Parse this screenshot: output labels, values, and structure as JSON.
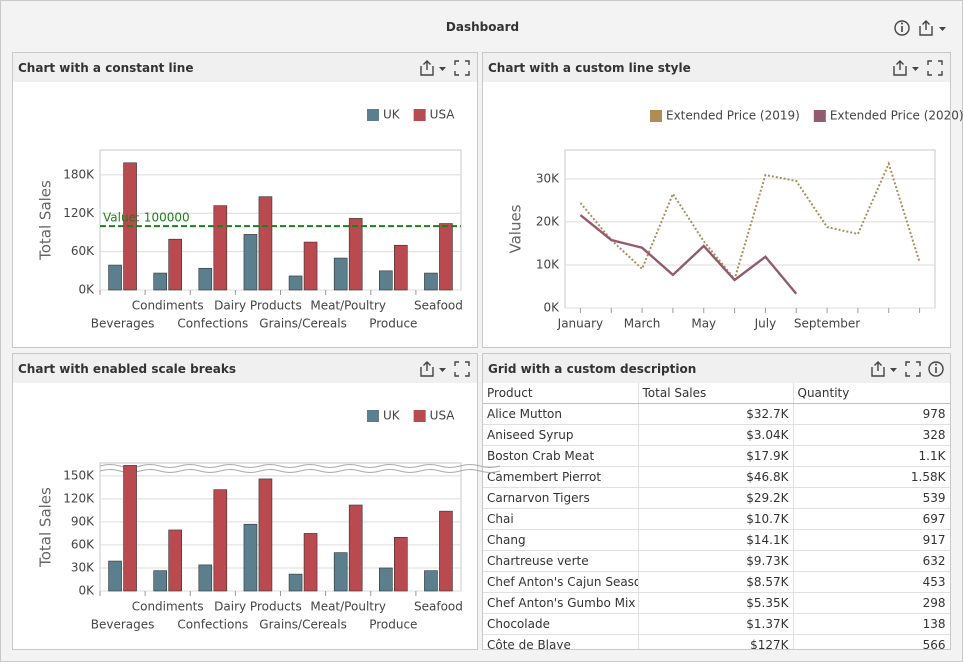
{
  "dashboard": {
    "title": "Dashboard"
  },
  "chart_data": [
    {
      "type": "bar",
      "title": "Chart with a constant line",
      "y_title": "Total Sales",
      "categories": [
        "Beverages",
        "Condiments",
        "Confections",
        "Dairy Products",
        "Grains/Cereals",
        "Meat/Poultry",
        "Produce",
        "Seafood"
      ],
      "series": [
        {
          "name": "UK",
          "color": "#5b7f8c",
          "values": [
            39000,
            26500,
            34000,
            87000,
            22000,
            50000,
            30000,
            26500
          ]
        },
        {
          "name": "USA",
          "color": "#b94a4f",
          "values": [
            199000,
            79500,
            132000,
            146000,
            75000,
            112000,
            70000,
            104000
          ]
        }
      ],
      "ylim": [
        0,
        219000
      ],
      "yticks": [
        {
          "value": 0,
          "label": "0K"
        },
        {
          "value": 60000,
          "label": "60K"
        },
        {
          "value": 120000,
          "label": "120K"
        },
        {
          "value": 180000,
          "label": "180K"
        }
      ],
      "constant_lines": [
        {
          "value": 100000,
          "label": "Value: 100000",
          "color": "#1e7d1e"
        }
      ],
      "grid": true,
      "legend": "top-right"
    },
    {
      "type": "line",
      "title": "Chart with a custom line style",
      "y_title": "Values",
      "categories": [
        "January",
        null,
        "March",
        null,
        "May",
        null,
        "July",
        null,
        "September",
        null,
        null,
        null
      ],
      "series": [
        {
          "name": "Extended Price (2019)",
          "color": "#b08d57",
          "dash": "dotted",
          "values": [
            24400,
            15800,
            9100,
            26500,
            15500,
            6700,
            30900,
            29500,
            18800,
            17200,
            33500,
            10700
          ]
        },
        {
          "name": "Extended Price (2020)",
          "color": "#935b6e",
          "dash": "solid",
          "values": [
            21600,
            15800,
            14000,
            7700,
            14400,
            6500,
            11900,
            3300,
            null,
            null,
            null,
            null
          ]
        }
      ],
      "ylim": [
        0,
        36700
      ],
      "yticks": [
        {
          "value": 0,
          "label": "0K"
        },
        {
          "value": 10000,
          "label": "10K"
        },
        {
          "value": 20000,
          "label": "20K"
        },
        {
          "value": 30000,
          "label": "30K"
        }
      ],
      "grid": true,
      "legend": "top-right"
    },
    {
      "type": "bar",
      "title": "Chart with enabled scale breaks",
      "y_title": "Total Sales",
      "categories": [
        "Beverages",
        "Condiments",
        "Confections",
        "Dairy Products",
        "Grains/Cereals",
        "Meat/Poultry",
        "Produce",
        "Seafood"
      ],
      "series": [
        {
          "name": "UK",
          "color": "#5b7f8c",
          "values": [
            39000,
            26500,
            34000,
            87000,
            22000,
            50000,
            30000,
            26500
          ]
        },
        {
          "name": "USA",
          "color": "#b94a4f",
          "values": [
            199000,
            79500,
            132000,
            146000,
            75000,
            112000,
            70000,
            104000
          ]
        }
      ],
      "ylim": [
        0,
        205000
      ],
      "scale_break": [
        155000,
        195000
      ],
      "yticks": [
        {
          "value": 0,
          "label": "0K"
        },
        {
          "value": 30000,
          "label": "30K"
        },
        {
          "value": 60000,
          "label": "60K"
        },
        {
          "value": 90000,
          "label": "90K"
        },
        {
          "value": 120000,
          "label": "120K"
        },
        {
          "value": 150000,
          "label": "150K"
        }
      ],
      "grid": true,
      "legend": "top-right"
    }
  ],
  "grid": {
    "title": "Grid with a custom description",
    "columns": [
      "Product",
      "Total Sales",
      "Quantity"
    ],
    "rows": [
      [
        "Alice Mutton",
        "$32.7K",
        "978"
      ],
      [
        "Aniseed Syrup",
        "$3.04K",
        "328"
      ],
      [
        "Boston Crab Meat",
        "$17.9K",
        "1.1K"
      ],
      [
        "Camembert Pierrot",
        "$46.8K",
        "1.58K"
      ],
      [
        "Carnarvon Tigers",
        "$29.2K",
        "539"
      ],
      [
        "Chai",
        "$10.7K",
        "697"
      ],
      [
        "Chang",
        "$14.1K",
        "917"
      ],
      [
        "Chartreuse verte",
        "$9.73K",
        "632"
      ],
      [
        "Chef Anton's Cajun Seaso...",
        "$8.57K",
        "453"
      ],
      [
        "Chef Anton's Gumbo Mix",
        "$5.35K",
        "298"
      ],
      [
        "Chocolade",
        "$1.37K",
        "138"
      ],
      [
        "Côte de Blaye",
        "$127K",
        "566"
      ]
    ]
  }
}
